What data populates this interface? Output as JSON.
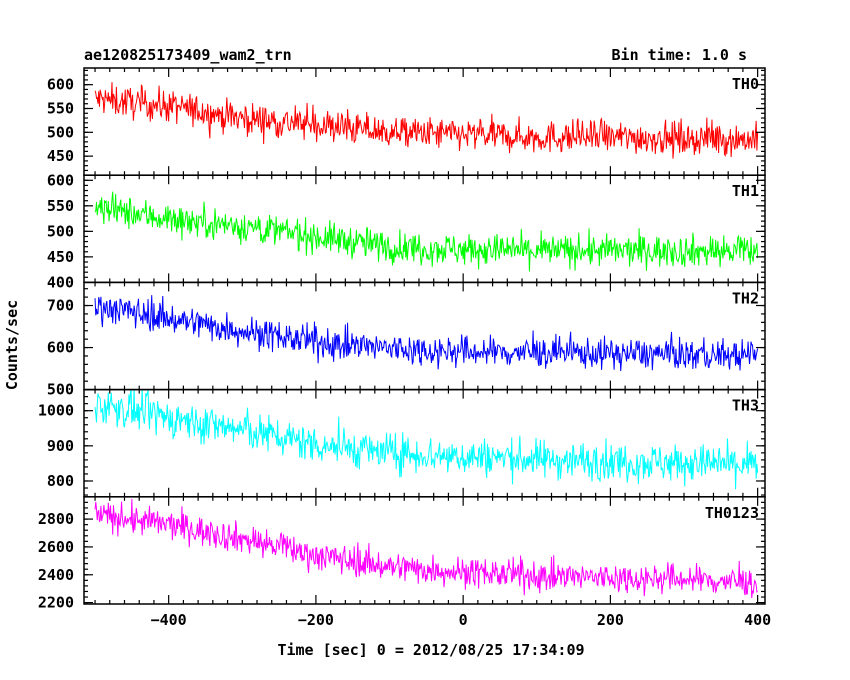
{
  "header": {
    "title": "ae120825173409_wam2_trn",
    "bin_time": "Bin time: 1.0 s"
  },
  "chart_data": {
    "type": "line",
    "xlabel": "Time [sec] 0 = 2012/08/25 17:34:09",
    "ylabel": "Counts/sec",
    "xlim": [
      -515,
      410
    ],
    "x_range": [
      -500,
      400
    ],
    "x_ticks": [
      -400,
      -200,
      0,
      200,
      400
    ],
    "x_tick_labels": [
      "−400",
      "−200",
      "0",
      "200",
      "400"
    ],
    "grid": false,
    "panels": [
      {
        "name": "TH0",
        "color": "#ff0000",
        "ylim": [
          410,
          635
        ],
        "y_ticks": [
          450,
          500,
          550,
          600
        ],
        "trend": [
          [
            -500,
            570
          ],
          [
            -400,
            555
          ],
          [
            -300,
            530
          ],
          [
            -200,
            515
          ],
          [
            -100,
            500
          ],
          [
            0,
            495
          ],
          [
            100,
            490
          ],
          [
            200,
            490
          ],
          [
            300,
            487
          ],
          [
            400,
            485
          ]
        ],
        "noise": 24
      },
      {
        "name": "TH1",
        "color": "#00ff00",
        "ylim": [
          400,
          610
        ],
        "y_ticks": [
          400,
          450,
          500,
          550,
          600
        ],
        "trend": [
          [
            -500,
            545
          ],
          [
            -400,
            525
          ],
          [
            -300,
            510
          ],
          [
            -200,
            490
          ],
          [
            -100,
            470
          ],
          [
            0,
            465
          ],
          [
            100,
            462
          ],
          [
            200,
            462
          ],
          [
            300,
            462
          ],
          [
            400,
            460
          ]
        ],
        "noise": 22
      },
      {
        "name": "TH2",
        "color": "#0000ff",
        "ylim": [
          500,
          755
        ],
        "y_ticks": [
          500,
          600,
          700
        ],
        "trend": [
          [
            -500,
            700
          ],
          [
            -400,
            670
          ],
          [
            -300,
            640
          ],
          [
            -200,
            612
          ],
          [
            -100,
            598
          ],
          [
            0,
            590
          ],
          [
            100,
            588
          ],
          [
            200,
            586
          ],
          [
            300,
            584
          ],
          [
            400,
            580
          ]
        ],
        "noise": 26
      },
      {
        "name": "TH3",
        "color": "#00ffff",
        "ylim": [
          755,
          1060
        ],
        "y_ticks": [
          800,
          900,
          1000
        ],
        "trend": [
          [
            -500,
            1020
          ],
          [
            -400,
            980
          ],
          [
            -300,
            945
          ],
          [
            -200,
            905
          ],
          [
            -100,
            880
          ],
          [
            0,
            870
          ],
          [
            100,
            862
          ],
          [
            200,
            856
          ],
          [
            300,
            852
          ],
          [
            400,
            845
          ]
        ],
        "noise": 38
      },
      {
        "name": "TH0123",
        "color": "#ff00ff",
        "ylim": [
          2190,
          2960
        ],
        "y_ticks": [
          2200,
          2400,
          2600,
          2800
        ],
        "trend": [
          [
            -500,
            2830
          ],
          [
            -400,
            2760
          ],
          [
            -300,
            2660
          ],
          [
            -200,
            2540
          ],
          [
            -100,
            2460
          ],
          [
            0,
            2420
          ],
          [
            100,
            2390
          ],
          [
            200,
            2380
          ],
          [
            300,
            2370
          ],
          [
            400,
            2340
          ]
        ],
        "noise": 75
      }
    ]
  }
}
